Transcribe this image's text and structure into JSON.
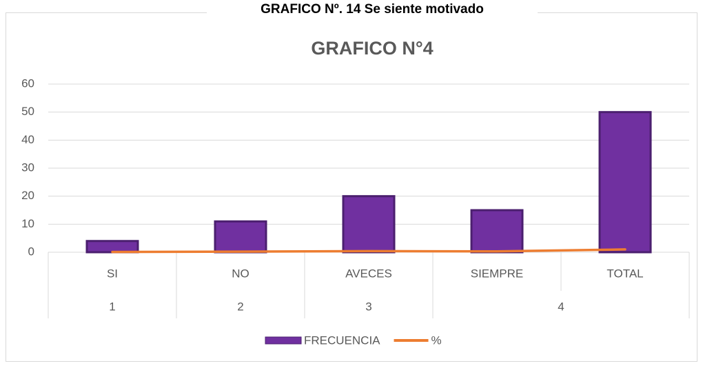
{
  "header": "GRAFICO Nº. 14 Se siente motivado",
  "chart_data": {
    "type": "bar",
    "title": "GRAFICO N°4",
    "categories": [
      "SI",
      "NO",
      "AVECES",
      "SIEMPRE",
      "TOTAL"
    ],
    "groups": [
      {
        "label": "1",
        "count": 1
      },
      {
        "label": "2",
        "count": 1
      },
      {
        "label": "3",
        "count": 1
      },
      {
        "label": "4",
        "count": 2
      }
    ],
    "series": [
      {
        "name": "FRECUENCIA",
        "type": "bar",
        "color": "#7030a0",
        "values": [
          4,
          11,
          20,
          15,
          50
        ]
      },
      {
        "name": "%",
        "type": "line",
        "color": "#ed7d31",
        "values": [
          0.08,
          0.22,
          0.4,
          0.3,
          1
        ]
      }
    ],
    "ylim": [
      0,
      60
    ],
    "yticks": [
      0,
      10,
      20,
      30,
      40,
      50,
      60
    ],
    "grid": true,
    "legend": "bottom"
  }
}
